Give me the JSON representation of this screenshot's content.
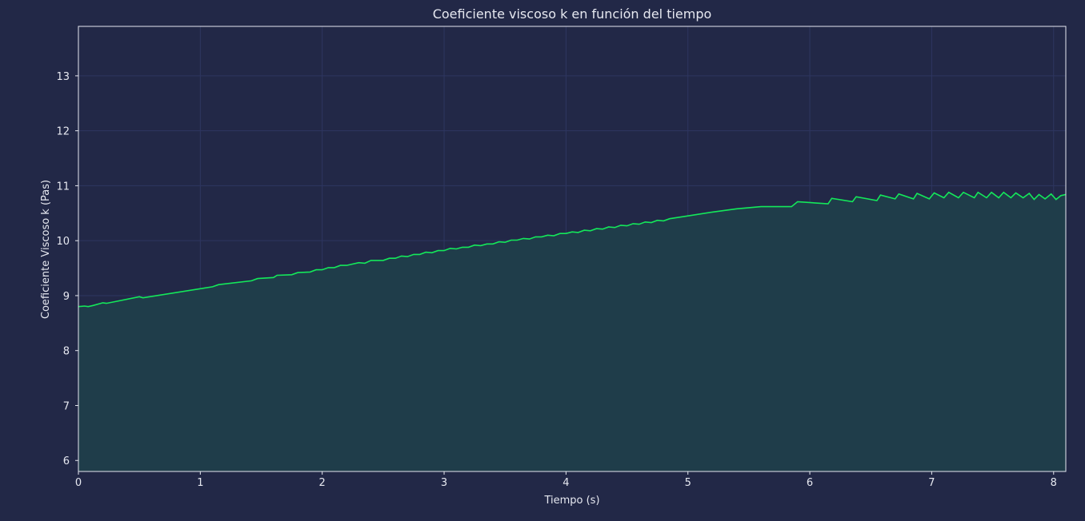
{
  "chart_data": {
    "type": "area",
    "title": "Coeficiente viscoso k en función del tiempo",
    "xlabel": "Tiempo (s)",
    "ylabel": "Coeficiente Viscoso k (Pas)",
    "xlim": [
      0,
      8.1
    ],
    "ylim": [
      5.8,
      13.9
    ],
    "xticks": [
      0,
      1,
      2,
      3,
      4,
      5,
      6,
      7,
      8
    ],
    "yticks": [
      6,
      7,
      8,
      9,
      10,
      11,
      12,
      13
    ],
    "grid": true,
    "colors": {
      "background": "#222847",
      "line": "#14e85a",
      "fill": "#1f3d4a",
      "grid": "#2e3660",
      "text": "#e6e8f0"
    },
    "series": [
      {
        "x": [
          0,
          0.05,
          0.08,
          0.12,
          0.2,
          0.23,
          0.3,
          0.5,
          0.53,
          1.1,
          1.15,
          1.42,
          1.47,
          1.6,
          1.63,
          1.75,
          1.8,
          1.9,
          1.95,
          2.0,
          2.05,
          2.1,
          2.15,
          2.2,
          2.3,
          2.35,
          2.4,
          2.5,
          2.55,
          2.6,
          2.65,
          2.7,
          2.75,
          2.8,
          2.85,
          2.9,
          2.95,
          3.0,
          3.05,
          3.1,
          3.15,
          3.2,
          3.25,
          3.3,
          3.35,
          3.4,
          3.45,
          3.5,
          3.55,
          3.6,
          3.65,
          3.7,
          3.75,
          3.8,
          3.85,
          3.9,
          3.95,
          4.0,
          4.05,
          4.1,
          4.15,
          4.2,
          4.25,
          4.3,
          4.35,
          4.4,
          4.45,
          4.5,
          4.55,
          4.6,
          4.65,
          4.7,
          4.75,
          4.8,
          4.85,
          5.0,
          5.2,
          5.4,
          5.6,
          5.85,
          5.9,
          6.15,
          6.18,
          6.35,
          6.38,
          6.55,
          6.58,
          6.7,
          6.73,
          6.85,
          6.88,
          6.98,
          7.02,
          7.1,
          7.14,
          7.22,
          7.26,
          7.35,
          7.38,
          7.45,
          7.49,
          7.55,
          7.59,
          7.65,
          7.69,
          7.75,
          7.8,
          7.84,
          7.88,
          7.93,
          7.98,
          8.02,
          8.06,
          8.1
        ],
        "y": [
          8.8,
          8.81,
          8.8,
          8.82,
          8.87,
          8.86,
          8.89,
          8.98,
          8.96,
          9.16,
          9.2,
          9.27,
          9.31,
          9.33,
          9.37,
          9.38,
          9.42,
          9.43,
          9.47,
          9.47,
          9.51,
          9.51,
          9.55,
          9.55,
          9.6,
          9.59,
          9.64,
          9.64,
          9.68,
          9.68,
          9.72,
          9.71,
          9.75,
          9.75,
          9.79,
          9.78,
          9.82,
          9.82,
          9.86,
          9.85,
          9.88,
          9.88,
          9.92,
          9.91,
          9.94,
          9.94,
          9.98,
          9.97,
          10.01,
          10.01,
          10.04,
          10.03,
          10.07,
          10.07,
          10.1,
          10.09,
          10.13,
          10.13,
          10.16,
          10.15,
          10.19,
          10.18,
          10.22,
          10.21,
          10.25,
          10.24,
          10.28,
          10.27,
          10.31,
          10.3,
          10.34,
          10.33,
          10.37,
          10.36,
          10.4,
          10.45,
          10.52,
          10.58,
          10.62,
          10.62,
          10.71,
          10.67,
          10.77,
          10.71,
          10.8,
          10.73,
          10.83,
          10.76,
          10.85,
          10.76,
          10.86,
          10.76,
          10.87,
          10.78,
          10.88,
          10.78,
          10.88,
          10.78,
          10.88,
          10.78,
          10.88,
          10.78,
          10.88,
          10.78,
          10.87,
          10.78,
          10.86,
          10.75,
          10.84,
          10.76,
          10.85,
          10.75,
          10.82,
          10.84
        ]
      }
    ]
  }
}
